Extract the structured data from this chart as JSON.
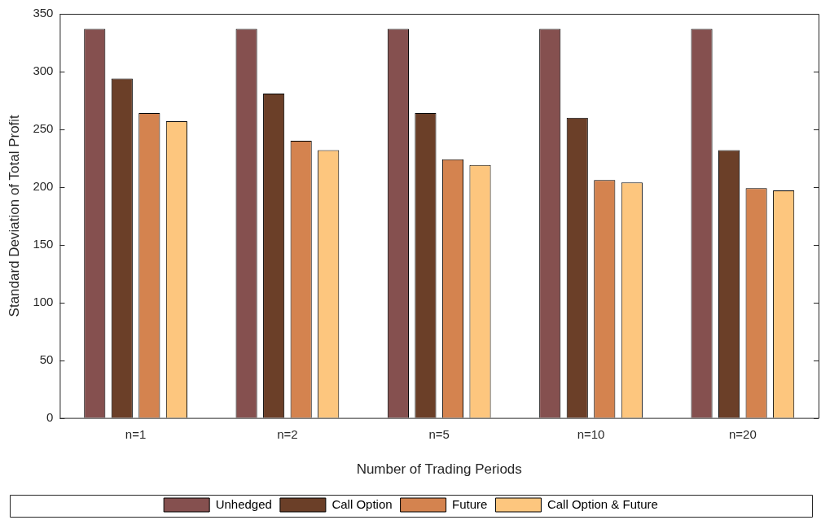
{
  "chart_data": {
    "type": "bar",
    "xlabel": "Number of Trading Periods",
    "ylabel": "Standard Deviation of Total Profit",
    "categories": [
      "n=1",
      "n=2",
      "n=5",
      "n=10",
      "n=20"
    ],
    "series": [
      {
        "name": "Unhedged",
        "color": "#85504f",
        "values": [
          337,
          337,
          337,
          337,
          337
        ]
      },
      {
        "name": "Call Option",
        "color": "#6b3f28",
        "values": [
          294,
          281,
          264,
          260,
          232
        ]
      },
      {
        "name": "Future",
        "color": "#d4834f",
        "values": [
          264,
          240,
          224,
          206,
          199
        ]
      },
      {
        "name": "Call Option & Future",
        "color": "#fdc67e",
        "values": [
          257,
          232,
          219,
          204,
          197
        ]
      }
    ],
    "ylim": [
      0,
      350
    ],
    "yticks": [
      0,
      50,
      100,
      150,
      200,
      250,
      300,
      350
    ],
    "grid": false,
    "legend": "bottom"
  }
}
